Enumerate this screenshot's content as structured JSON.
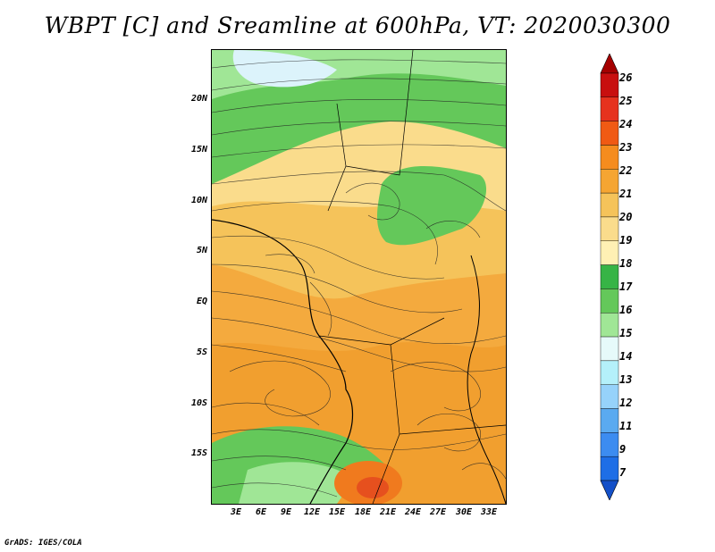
{
  "title": "WBPT [C] and Sreamline at 600hPa, VT: 2020030300",
  "credit": "GrADS: IGES/COLA",
  "lat_labels": [
    "20N",
    "15N",
    "10N",
    "5N",
    "EQ",
    "5S",
    "10S",
    "15S"
  ],
  "lon_labels": [
    "3E",
    "6E",
    "9E",
    "12E",
    "15E",
    "18E",
    "21E",
    "24E",
    "27E",
    "30E",
    "33E"
  ],
  "colorbar": {
    "labels": [
      "26",
      "25",
      "24",
      "23",
      "22",
      "21",
      "20",
      "19",
      "18",
      "17",
      "16",
      "15",
      "14",
      "13",
      "12",
      "11",
      "9",
      "7"
    ],
    "colors": [
      "#a50000",
      "#c80f0f",
      "#e6321e",
      "#f05a14",
      "#f58c1e",
      "#f5a532",
      "#f5c35a",
      "#fadc8c",
      "#fff0b4",
      "#37b446",
      "#64c85a",
      "#a0e696",
      "#e6fafa",
      "#b4f0fa",
      "#96d2fa",
      "#5aaaf0",
      "#3c8cf0",
      "#1e6ee6",
      "#1450c8"
    ]
  },
  "map_colors": {
    "cool_blue": "#dcf3fb",
    "light_green": "#a0e696",
    "green": "#64c85a",
    "dark_green": "#37b446",
    "pale_yellow": "#fadc8c",
    "yellow_orange": "#f5c35a",
    "orange": "#f5a532",
    "dark_orange": "#f08c1e",
    "red_orange": "#e6501e"
  }
}
